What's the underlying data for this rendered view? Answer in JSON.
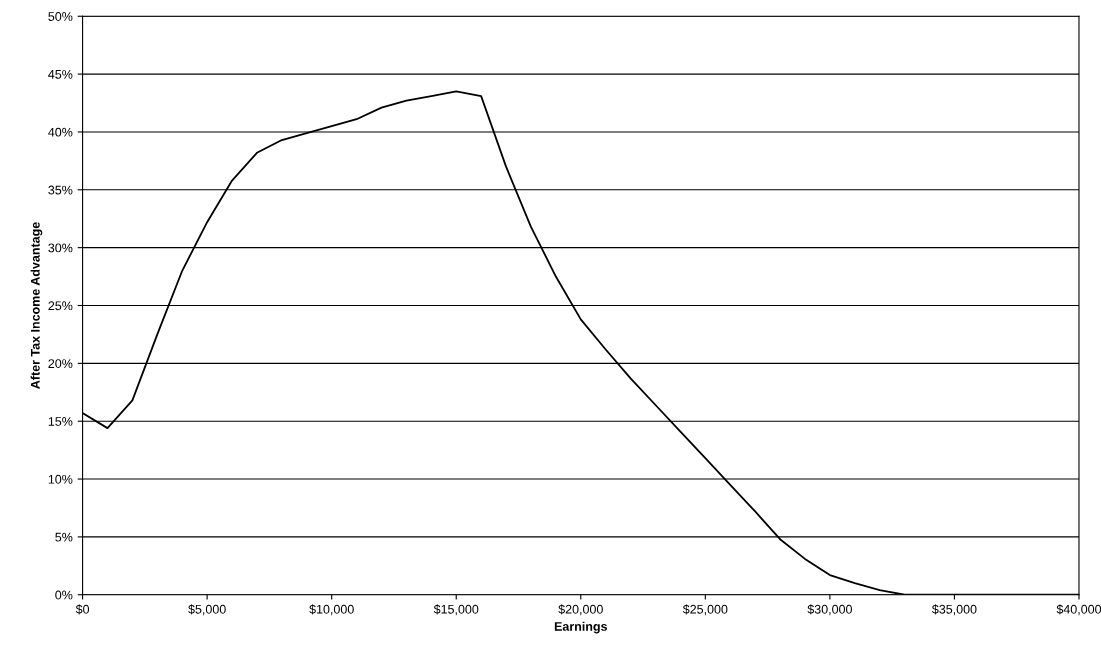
{
  "chart_data": {
    "type": "line",
    "xlabel": "Earnings",
    "ylabel": "After Tax Income Advantage",
    "x": [
      0,
      1000,
      2000,
      3000,
      4000,
      5000,
      6000,
      7000,
      8000,
      9000,
      10000,
      11000,
      12000,
      13000,
      14000,
      15000,
      16000,
      17000,
      18000,
      19000,
      20000,
      21000,
      22000,
      23000,
      24000,
      25000,
      26000,
      27000,
      28000,
      29000,
      30000,
      31000,
      32000,
      33000,
      34000,
      35000,
      36000,
      37000,
      38000,
      39000,
      40000
    ],
    "series": [
      {
        "color": "#000000",
        "values": [
          15.7,
          14.4,
          16.8,
          22.5,
          28.0,
          32.2,
          35.8,
          38.2,
          39.3,
          39.9,
          40.5,
          41.1,
          42.1,
          42.7,
          43.1,
          43.5,
          43.1,
          37.0,
          31.8,
          27.5,
          23.8,
          21.2,
          18.7,
          16.4,
          14.1,
          11.8,
          9.5,
          7.2,
          4.8,
          3.1,
          1.7,
          1.0,
          0.4,
          0.0,
          0,
          0,
          0,
          0,
          0,
          0,
          0
        ]
      }
    ],
    "xlim": [
      0,
      40000
    ],
    "ylim": [
      0,
      50
    ],
    "xticks": [
      {
        "value": 0,
        "label": "$0"
      },
      {
        "value": 5000,
        "label": "$5,000"
      },
      {
        "value": 10000,
        "label": "$10,000"
      },
      {
        "value": 15000,
        "label": "$15,000"
      },
      {
        "value": 20000,
        "label": "$20,000"
      },
      {
        "value": 25000,
        "label": "$25,000"
      },
      {
        "value": 30000,
        "label": "$30,000"
      },
      {
        "value": 35000,
        "label": "$35,000"
      },
      {
        "value": 40000,
        "label": "$40,000"
      }
    ],
    "yticks": [
      {
        "value": 0,
        "label": "0%"
      },
      {
        "value": 5,
        "label": "5%"
      },
      {
        "value": 10,
        "label": "10%"
      },
      {
        "value": 15,
        "label": "15%"
      },
      {
        "value": 20,
        "label": "20%"
      },
      {
        "value": 25,
        "label": "25%"
      },
      {
        "value": 30,
        "label": "30%"
      },
      {
        "value": 35,
        "label": "35%"
      },
      {
        "value": 40,
        "label": "40%"
      },
      {
        "value": 45,
        "label": "45%"
      },
      {
        "value": 50,
        "label": "50%"
      }
    ],
    "grid": "y",
    "marker": "none",
    "line_style": "solid",
    "legend": false
  }
}
